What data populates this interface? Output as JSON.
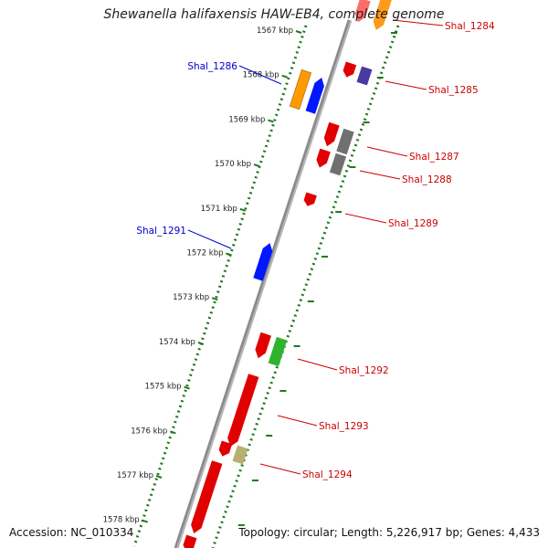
{
  "title": "Shewanella halifaxensis HAW-EB4, complete genome",
  "accession": "Accession: NC_010334",
  "topology": "Topology: circular; Length: 5,226,917 bp; Genes: 4,433",
  "colors": {
    "backbone": "#8a8a8a",
    "ruler": "#1f7a1f",
    "forward_label": "#0000cc",
    "reverse_label": "#cc0000"
  },
  "ruler_labels": [
    "1567 kbp",
    "1568 kbp",
    "1569 kbp",
    "1570 kbp",
    "1571 kbp",
    "1572 kbp",
    "1573 kbp",
    "1574 kbp",
    "1575 kbp",
    "1576 kbp",
    "1577 kbp",
    "1578 kbp"
  ],
  "gene_labels": [
    {
      "text": "Shal_1284",
      "strand": "reverse"
    },
    {
      "text": "Shal_1285",
      "strand": "reverse"
    },
    {
      "text": "Shal_1286",
      "strand": "forward"
    },
    {
      "text": "Shal_1287",
      "strand": "reverse"
    },
    {
      "text": "Shal_1288",
      "strand": "reverse"
    },
    {
      "text": "Shal_1289",
      "strand": "reverse"
    },
    {
      "text": "Shal_1291",
      "strand": "forward"
    },
    {
      "text": "Shal_1292",
      "strand": "reverse"
    },
    {
      "text": "Shal_1293",
      "strand": "reverse"
    },
    {
      "text": "Shal_1294",
      "strand": "reverse"
    }
  ]
}
